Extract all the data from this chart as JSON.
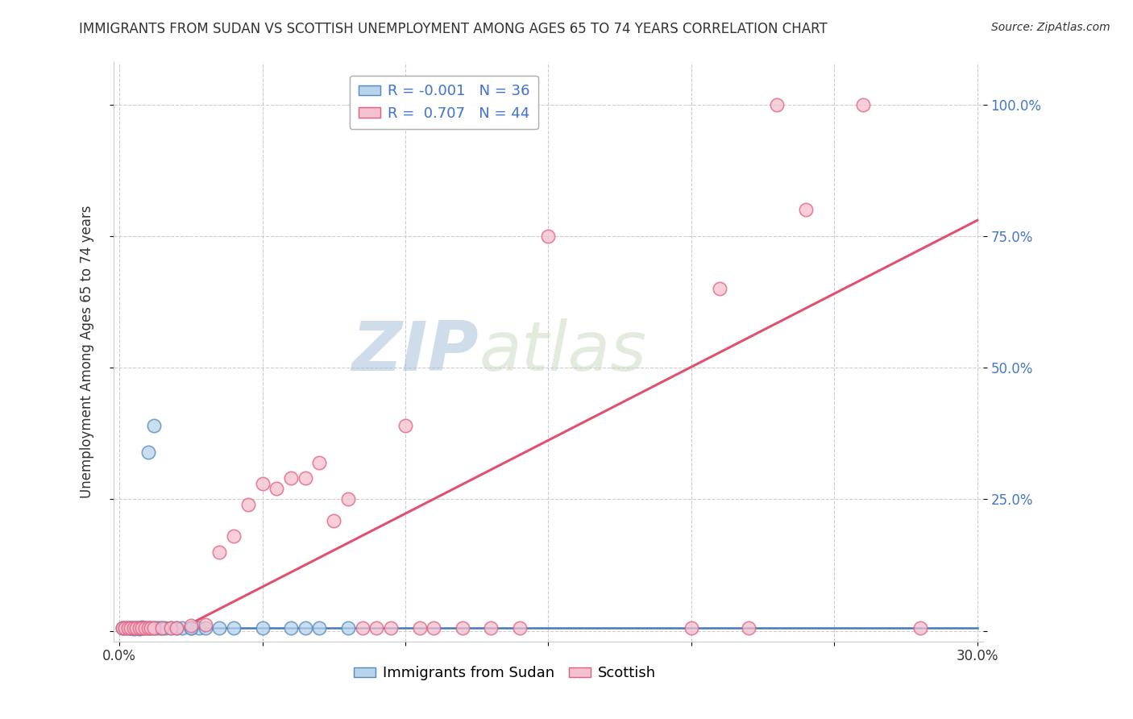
{
  "title": "IMMIGRANTS FROM SUDAN VS SCOTTISH UNEMPLOYMENT AMONG AGES 65 TO 74 YEARS CORRELATION CHART",
  "source": "Source: ZipAtlas.com",
  "xlabel_blue": "Immigrants from Sudan",
  "xlabel_pink": "Scottish",
  "ylabel": "Unemployment Among Ages 65 to 74 years",
  "xlim": [
    -0.002,
    0.302
  ],
  "ylim": [
    -0.02,
    1.08
  ],
  "yticks": [
    0.0,
    0.25,
    0.5,
    0.75,
    1.0
  ],
  "ytick_labels": [
    "",
    "25.0%",
    "50.0%",
    "75.0%",
    "100.0%"
  ],
  "xticks": [
    0.0,
    0.05,
    0.1,
    0.15,
    0.2,
    0.25,
    0.3
  ],
  "xtick_labels": [
    "0.0%",
    "",
    "",
    "",
    "",
    "",
    "30.0%"
  ],
  "legend_r_blue": "-0.001",
  "legend_n_blue": "36",
  "legend_r_pink": "0.707",
  "legend_n_pink": "44",
  "blue_fill": "#b8d4ec",
  "pink_fill": "#f5c0d0",
  "blue_edge": "#5588bb",
  "pink_edge": "#e06080",
  "trend_blue_color": "#4477bb",
  "trend_pink_color": "#e05070",
  "grid_color": "#cccccc",
  "watermark_color": "#d0dde8",
  "background_color": "#ffffff",
  "text_color": "#333333",
  "axis_label_color": "#4477cc",
  "blue_points": [
    [
      0.001,
      0.005
    ],
    [
      0.002,
      0.005
    ],
    [
      0.003,
      0.005
    ],
    [
      0.004,
      0.005
    ],
    [
      0.004,
      0.006
    ],
    [
      0.005,
      0.004
    ],
    [
      0.005,
      0.006
    ],
    [
      0.006,
      0.005
    ],
    [
      0.007,
      0.004
    ],
    [
      0.007,
      0.006
    ],
    [
      0.008,
      0.005
    ],
    [
      0.008,
      0.007
    ],
    [
      0.009,
      0.005
    ],
    [
      0.01,
      0.005
    ],
    [
      0.011,
      0.005
    ],
    [
      0.012,
      0.005
    ],
    [
      0.013,
      0.005
    ],
    [
      0.014,
      0.005
    ],
    [
      0.015,
      0.005
    ],
    [
      0.016,
      0.005
    ],
    [
      0.018,
      0.005
    ],
    [
      0.02,
      0.005
    ],
    [
      0.022,
      0.005
    ],
    [
      0.025,
      0.005
    ],
    [
      0.028,
      0.005
    ],
    [
      0.03,
      0.005
    ],
    [
      0.035,
      0.005
    ],
    [
      0.04,
      0.005
    ],
    [
      0.05,
      0.005
    ],
    [
      0.06,
      0.005
    ],
    [
      0.065,
      0.005
    ],
    [
      0.07,
      0.005
    ],
    [
      0.01,
      0.34
    ],
    [
      0.012,
      0.39
    ],
    [
      0.025,
      0.005
    ],
    [
      0.08,
      0.005
    ]
  ],
  "pink_points": [
    [
      0.001,
      0.005
    ],
    [
      0.002,
      0.005
    ],
    [
      0.003,
      0.005
    ],
    [
      0.004,
      0.005
    ],
    [
      0.005,
      0.005
    ],
    [
      0.006,
      0.005
    ],
    [
      0.007,
      0.005
    ],
    [
      0.008,
      0.005
    ],
    [
      0.009,
      0.005
    ],
    [
      0.01,
      0.005
    ],
    [
      0.011,
      0.005
    ],
    [
      0.012,
      0.005
    ],
    [
      0.015,
      0.005
    ],
    [
      0.018,
      0.005
    ],
    [
      0.02,
      0.005
    ],
    [
      0.025,
      0.01
    ],
    [
      0.03,
      0.012
    ],
    [
      0.035,
      0.15
    ],
    [
      0.04,
      0.18
    ],
    [
      0.045,
      0.24
    ],
    [
      0.05,
      0.28
    ],
    [
      0.055,
      0.27
    ],
    [
      0.06,
      0.29
    ],
    [
      0.065,
      0.29
    ],
    [
      0.07,
      0.32
    ],
    [
      0.075,
      0.21
    ],
    [
      0.08,
      0.25
    ],
    [
      0.085,
      0.005
    ],
    [
      0.09,
      0.005
    ],
    [
      0.095,
      0.005
    ],
    [
      0.1,
      0.39
    ],
    [
      0.105,
      0.005
    ],
    [
      0.11,
      0.005
    ],
    [
      0.12,
      0.005
    ],
    [
      0.13,
      0.005
    ],
    [
      0.14,
      0.005
    ],
    [
      0.15,
      0.75
    ],
    [
      0.2,
      0.005
    ],
    [
      0.21,
      0.65
    ],
    [
      0.22,
      0.005
    ],
    [
      0.23,
      1.0
    ],
    [
      0.24,
      0.8
    ],
    [
      0.26,
      1.0
    ],
    [
      0.28,
      0.005
    ]
  ],
  "blue_trend_x": [
    0.0,
    0.3
  ],
  "blue_trend_y": [
    0.005,
    0.005
  ],
  "pink_trend_x": [
    0.02,
    0.3
  ],
  "pink_trend_y": [
    0.0,
    0.78
  ]
}
